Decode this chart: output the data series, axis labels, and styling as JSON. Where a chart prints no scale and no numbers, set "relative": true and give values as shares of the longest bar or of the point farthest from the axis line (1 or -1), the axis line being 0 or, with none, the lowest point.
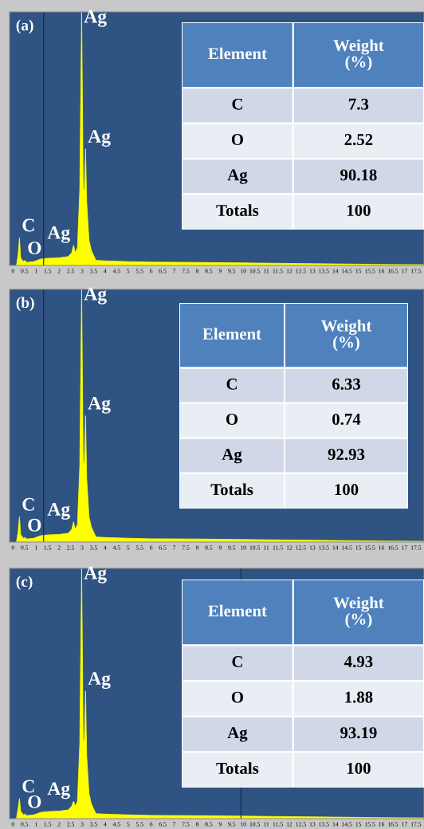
{
  "chart_data": [
    {
      "type": "area",
      "relative": true,
      "xlim": [
        -0.15,
        17.85
      ],
      "xticks": [
        0,
        0.5,
        1,
        1.5,
        2,
        2.5,
        3,
        3.5,
        4,
        4.5,
        5,
        5.5,
        6,
        6.5,
        7,
        7.5,
        8,
        8.5,
        9,
        9.5,
        10,
        10.5,
        11,
        11.5,
        12,
        12.5,
        13,
        13.5,
        14,
        14.5,
        15,
        15.5,
        16,
        16.5,
        17,
        17.5
      ],
      "x": [
        0.15,
        0.22,
        0.28,
        0.33,
        0.45,
        0.52,
        0.6,
        0.9,
        1.2,
        1.5,
        2.0,
        2.4,
        2.55,
        2.63,
        2.7,
        2.8,
        2.9,
        2.98,
        3.05,
        3.1,
        3.15,
        3.2,
        3.3,
        3.4,
        3.5,
        3.6,
        4,
        5,
        6,
        8,
        10,
        12,
        14,
        16,
        17.85
      ],
      "series": [
        {
          "color": "#ffff00",
          "values": [
            0,
            0.04,
            0.11,
            0.03,
            0.015,
            0.02,
            0.012,
            0.015,
            0.025,
            0.028,
            0.03,
            0.035,
            0.05,
            0.08,
            0.05,
            0.07,
            0.3,
            1.0,
            0.3,
            0.3,
            0.46,
            0.25,
            0.1,
            0.06,
            0.04,
            0.02,
            0.018,
            0.015,
            0.013,
            0.012,
            0.01,
            0.008,
            0.006,
            0.004,
            0.003
          ]
        }
      ],
      "ref_lines": [
        {
          "axis": "x",
          "value": 1.33,
          "color": "#1a2a40"
        }
      ],
      "annotations": [
        "(a)",
        {
          "text": "Ag",
          "x": 2.98,
          "y": 1.0
        },
        {
          "text": "Ag",
          "x": 3.15,
          "y": 0.46
        },
        {
          "text": "C",
          "x": 0.28,
          "y": 0.11
        },
        {
          "text": "O",
          "x": 0.52,
          "y": 0.02
        },
        {
          "text": "Ag",
          "x": 2.63,
          "y": 0.08
        }
      ]
    },
    {
      "type": "other",
      "annotations": [
        "Element",
        "Weight\n(%)",
        "C",
        "7.3",
        "O",
        "2.52",
        "Ag",
        "90.18",
        "Totals",
        "100"
      ]
    },
    {
      "type": "area",
      "relative": true,
      "xlim": [
        -0.15,
        17.85
      ],
      "xticks": [
        0,
        0.5,
        1,
        1.5,
        2,
        2.5,
        3,
        3.5,
        4,
        4.5,
        5,
        5.5,
        6,
        6.5,
        7,
        7.5,
        8,
        8.5,
        9,
        9.5,
        10,
        10.5,
        11,
        11.5,
        12,
        12.5,
        13,
        13.5,
        14,
        14.5,
        15,
        15.5,
        16,
        16.5,
        17,
        17.5
      ],
      "x": [
        0.15,
        0.22,
        0.28,
        0.33,
        0.45,
        0.52,
        0.6,
        0.9,
        1.2,
        1.5,
        2.0,
        2.4,
        2.55,
        2.63,
        2.7,
        2.8,
        2.9,
        2.98,
        3.05,
        3.1,
        3.15,
        3.2,
        3.3,
        3.4,
        3.5,
        3.6,
        4,
        5,
        6,
        8,
        10,
        12,
        14,
        16,
        17.85
      ],
      "series": [
        {
          "color": "#ffff00",
          "values": [
            0,
            0.04,
            0.1,
            0.03,
            0.015,
            0.018,
            0.012,
            0.015,
            0.025,
            0.028,
            0.03,
            0.035,
            0.05,
            0.08,
            0.05,
            0.07,
            0.3,
            1.0,
            0.3,
            0.32,
            0.5,
            0.25,
            0.1,
            0.06,
            0.04,
            0.02,
            0.018,
            0.015,
            0.013,
            0.012,
            0.01,
            0.008,
            0.006,
            0.004,
            0.003
          ]
        }
      ],
      "ref_lines": [
        {
          "axis": "x",
          "value": 1.33,
          "color": "#1a2a40"
        }
      ],
      "annotations": [
        "(b)",
        {
          "text": "Ag",
          "x": 2.98,
          "y": 1.0
        },
        {
          "text": "Ag",
          "x": 3.15,
          "y": 0.5
        },
        {
          "text": "C",
          "x": 0.28,
          "y": 0.1
        },
        {
          "text": "O",
          "x": 0.52,
          "y": 0.018
        },
        {
          "text": "Ag",
          "x": 2.63,
          "y": 0.08
        }
      ]
    },
    {
      "type": "other",
      "annotations": [
        "Element",
        "Weight\n(%)",
        "C",
        "6.33",
        "O",
        "0.74",
        "Ag",
        "92.93",
        "Totals",
        "100"
      ]
    },
    {
      "type": "area",
      "relative": true,
      "xlim": [
        -0.15,
        17.85
      ],
      "xticks": [
        0,
        0.5,
        1,
        1.5,
        2,
        2.5,
        3,
        3.5,
        4,
        4.5,
        5,
        5.5,
        6,
        6.5,
        7,
        7.5,
        8,
        8.5,
        9,
        9.5,
        10,
        10.5,
        11,
        11.5,
        12,
        12.5,
        13,
        13.5,
        14,
        14.5,
        15,
        15.5,
        16,
        16.5,
        17,
        17.5
      ],
      "x": [
        0.15,
        0.22,
        0.28,
        0.33,
        0.45,
        0.52,
        0.6,
        0.9,
        1.2,
        1.5,
        2.0,
        2.4,
        2.55,
        2.63,
        2.7,
        2.8,
        2.9,
        2.98,
        3.05,
        3.1,
        3.15,
        3.2,
        3.3,
        3.4,
        3.5,
        3.6,
        4,
        5,
        6,
        8,
        10,
        12,
        14,
        16,
        17.85
      ],
      "series": [
        {
          "color": "#ffff00",
          "values": [
            0,
            0.04,
            0.08,
            0.03,
            0.015,
            0.018,
            0.012,
            0.015,
            0.025,
            0.028,
            0.03,
            0.035,
            0.05,
            0.07,
            0.05,
            0.07,
            0.3,
            1.0,
            0.3,
            0.32,
            0.51,
            0.25,
            0.1,
            0.06,
            0.04,
            0.02,
            0.018,
            0.015,
            0.013,
            0.012,
            0.01,
            0.008,
            0.006,
            0.004,
            0.003
          ]
        }
      ],
      "ref_lines": [
        {
          "axis": "x",
          "value": 9.9,
          "color": "#1a2a40"
        }
      ],
      "annotations": [
        "(c)",
        {
          "text": "Ag",
          "x": 2.98,
          "y": 1.0
        },
        {
          "text": "Ag",
          "x": 3.15,
          "y": 0.51
        },
        {
          "text": "C",
          "x": 0.28,
          "y": 0.08
        },
        {
          "text": "O",
          "x": 0.52,
          "y": 0.018
        },
        {
          "text": "Ag",
          "x": 2.63,
          "y": 0.07
        }
      ]
    },
    {
      "type": "other",
      "annotations": [
        "Element",
        "Weight\n(%)",
        "C",
        "4.93",
        "O",
        "1.88",
        "Ag",
        "93.19",
        "Totals",
        "100"
      ]
    }
  ]
}
